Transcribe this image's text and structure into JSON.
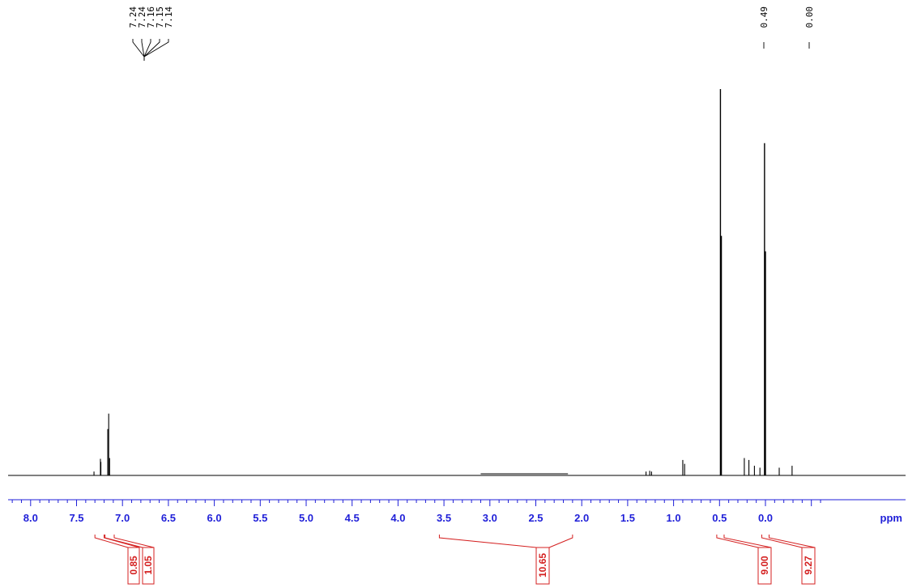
{
  "chart_data": {
    "type": "line",
    "title": "",
    "xlabel": "ppm",
    "ylabel": "",
    "xlim": [
      8.6,
      -0.65
    ],
    "x_reversed": true,
    "grid": false,
    "legend": "none",
    "x_ticks": [
      8.0,
      7.5,
      7.0,
      6.5,
      6.0,
      5.5,
      5.0,
      4.5,
      4.0,
      3.5,
      3.0,
      2.5,
      2.0,
      1.5,
      1.0,
      0.5,
      0.0
    ],
    "x_tick_labels": [
      "8.0",
      "7.5",
      "7.0",
      "6.5",
      "6.0",
      "5.5",
      "5.0",
      "4.5",
      "4.0",
      "3.5",
      "3.0",
      "2.5",
      "2.0",
      "1.5",
      "1.0",
      "0.5",
      "0.0"
    ],
    "peak_labels": [
      "7.24",
      "7.24",
      "7.16",
      "7.15",
      "7.14",
      "0.49",
      "0.00"
    ],
    "peaks": [
      {
        "ppm": 7.31,
        "height": 0.01
      },
      {
        "ppm": 7.24,
        "height": 0.043
      },
      {
        "ppm": 7.235,
        "height": 0.035
      },
      {
        "ppm": 7.16,
        "height": 0.12
      },
      {
        "ppm": 7.15,
        "height": 0.16
      },
      {
        "ppm": 7.14,
        "height": 0.045
      },
      {
        "ppm": 1.3,
        "height": 0.01
      },
      {
        "ppm": 1.26,
        "height": 0.012
      },
      {
        "ppm": 1.24,
        "height": 0.01
      },
      {
        "ppm": 0.9,
        "height": 0.04
      },
      {
        "ppm": 0.88,
        "height": 0.03
      },
      {
        "ppm": 0.49,
        "height": 1.0
      },
      {
        "ppm": 0.48,
        "height": 0.62
      },
      {
        "ppm": 0.23,
        "height": 0.045
      },
      {
        "ppm": 0.18,
        "height": 0.04
      },
      {
        "ppm": 0.12,
        "height": 0.025
      },
      {
        "ppm": 0.06,
        "height": 0.02
      },
      {
        "ppm": 0.01,
        "height": 0.86
      },
      {
        "ppm": 0.0,
        "height": 0.58
      },
      {
        "ppm": -0.15,
        "height": 0.02
      },
      {
        "ppm": -0.29,
        "height": 0.025
      }
    ],
    "integrals": [
      {
        "from": 7.3,
        "to": 7.2,
        "value": "0.85"
      },
      {
        "from": 7.19,
        "to": 7.09,
        "value": "1.05"
      },
      {
        "from": 3.55,
        "to": 2.1,
        "value": "10.65"
      },
      {
        "from": 0.53,
        "to": 0.45,
        "value": "9.00"
      },
      {
        "from": 0.04,
        "to": -0.04,
        "value": "9.27"
      }
    ],
    "colors": {
      "spectrum": "#000000",
      "axis": "#1f1fd8",
      "integral": "#d42020"
    }
  }
}
